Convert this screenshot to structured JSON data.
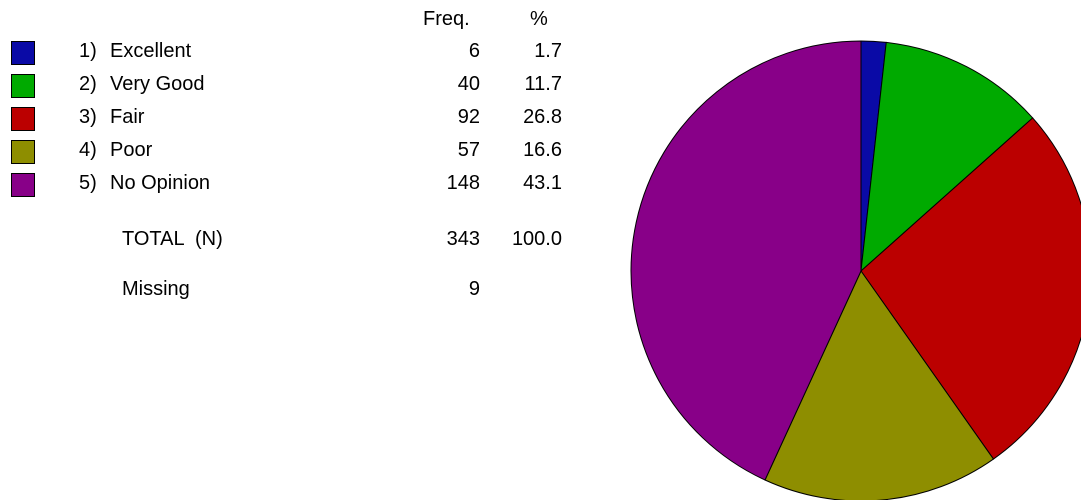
{
  "table": {
    "freq_header": "Freq.",
    "pct_header": "%",
    "rows": [
      {
        "num": "1)",
        "label": "Excellent",
        "freq": "6",
        "pct": "1.7"
      },
      {
        "num": "2)",
        "label": "Very Good",
        "freq": "40",
        "pct": "11.7"
      },
      {
        "num": "3)",
        "label": "Fair",
        "freq": "92",
        "pct": "26.8"
      },
      {
        "num": "4)",
        "label": "Poor",
        "freq": "57",
        "pct": "16.6"
      },
      {
        "num": "5)",
        "label": "No Opinion",
        "freq": "148",
        "pct": "43.1"
      }
    ],
    "total_label": "TOTAL  (N)",
    "total_freq": "343",
    "total_pct": "100.0",
    "missing_label": "Missing",
    "missing_freq": "9"
  },
  "chart_data": {
    "type": "pie",
    "categories": [
      "1) Excellent",
      "2) Very Good",
      "3) Fair",
      "4) Poor",
      "5) No Opinion"
    ],
    "values": [
      6,
      40,
      92,
      57,
      148
    ],
    "percent": [
      1.7,
      11.7,
      26.8,
      16.6,
      43.1
    ],
    "colors": [
      "#0a0aa6",
      "#00aa00",
      "#bb0000",
      "#8e8e00",
      "#880088"
    ],
    "start": "12 o'clock",
    "direction": "clockwise",
    "legend": "left"
  }
}
